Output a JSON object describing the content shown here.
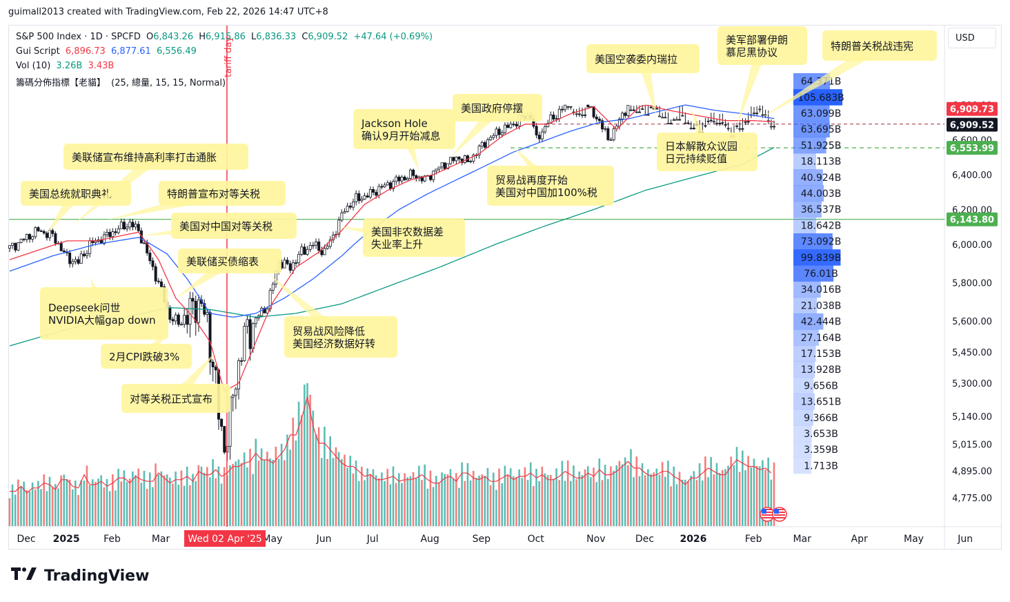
{
  "credit": "guimall2013 created with TradingView.com, Feb 22, 2026 14:47 UTC+8",
  "currency": "USD",
  "brand": "TradingView",
  "legend": {
    "symbol": "S&P 500 Index · 1D · SPCFD",
    "o_label": "O",
    "o": "6,843.26",
    "h_label": "H",
    "h": "6,915.86",
    "l_label": "L",
    "l": "6,836.33",
    "c_label": "C",
    "c": "6,909.52",
    "change": "+47.64 (+0.69%)",
    "script_label": "Gui Script",
    "script_v1": "6,896.73",
    "script_v2": "6,877.61",
    "script_v3": "6,556.49",
    "vol_label": "Vol (10)",
    "vol_v1": "3.26B",
    "vol_v2": "3.43B",
    "profile_label": "籌碼分佈指標【老貓】",
    "profile_params": "(25, 總量, 15, 15, Normal)"
  },
  "colors": {
    "up": "#26a69a",
    "down": "#ef5350",
    "ma_red": "#f23645",
    "ma_blue": "#2962ff",
    "ma_green": "#089981",
    "level_green": "#4caf50",
    "callout": "#fff59d",
    "profile": "#2962ff",
    "event": "#f23645"
  },
  "chart_data": {
    "type": "candlestick",
    "ylim": [
      4700,
      7000
    ],
    "yticks": [
      "6,800.00",
      "6,600.00",
      "6,400.00",
      "6,200.00",
      "6,000.00",
      "5,800.00",
      "5,600.00",
      "5,450.00",
      "5,300.00",
      "5,140.00",
      "5,015.00",
      "4,895.00",
      "4,775.00"
    ],
    "ytick_values": [
      6800,
      6600,
      6400,
      6200,
      6000,
      5800,
      5600,
      5450,
      5300,
      5140,
      5015,
      4895,
      4775
    ],
    "xticks": [
      {
        "label": "Dec",
        "bold": false
      },
      {
        "label": "2025",
        "bold": true
      },
      {
        "label": "Feb",
        "bold": false
      },
      {
        "label": "Mar",
        "bold": false
      },
      {
        "label": "May",
        "bold": false
      },
      {
        "label": "Jun",
        "bold": false
      },
      {
        "label": "Jul",
        "bold": false
      },
      {
        "label": "Aug",
        "bold": false
      },
      {
        "label": "Sep",
        "bold": false
      },
      {
        "label": "Oct",
        "bold": false
      },
      {
        "label": "Nov",
        "bold": false
      },
      {
        "label": "Dec",
        "bold": false
      },
      {
        "label": "2026",
        "bold": true
      },
      {
        "label": "Feb",
        "bold": false
      },
      {
        "label": "Mar",
        "bold": false
      },
      {
        "label": "Apr",
        "bold": false
      },
      {
        "label": "May",
        "bold": false
      },
      {
        "label": "Jun",
        "bold": false
      }
    ],
    "xtick_positions": [
      0,
      14,
      30,
      47,
      86,
      104,
      121,
      141,
      159,
      178,
      199,
      216,
      233,
      254,
      271,
      291,
      310,
      328
    ],
    "close_path": [
      [
        0,
        5980
      ],
      [
        5,
        6030
      ],
      [
        10,
        6080
      ],
      [
        15,
        6050
      ],
      [
        20,
        5930
      ],
      [
        24,
        5905
      ],
      [
        28,
        6000
      ],
      [
        33,
        6040
      ],
      [
        38,
        6090
      ],
      [
        42,
        6120
      ],
      [
        45,
        6080
      ],
      [
        48,
        5950
      ],
      [
        52,
        5800
      ],
      [
        56,
        5620
      ],
      [
        59,
        5590
      ],
      [
        62,
        5620
      ],
      [
        65,
        5700
      ],
      [
        67,
        5670
      ],
      [
        69,
        5590
      ],
      [
        71,
        5400
      ],
      [
        73,
        5150
      ],
      [
        75,
        5010
      ],
      [
        77,
        5130
      ],
      [
        79,
        5330
      ],
      [
        82,
        5520
      ],
      [
        86,
        5610
      ],
      [
        90,
        5680
      ],
      [
        94,
        5910
      ],
      [
        98,
        5880
      ],
      [
        102,
        5960
      ],
      [
        106,
        6000
      ],
      [
        110,
        5960
      ],
      [
        113,
        6050
      ],
      [
        117,
        6200
      ],
      [
        121,
        6260
      ],
      [
        125,
        6280
      ],
      [
        129,
        6320
      ],
      [
        133,
        6350
      ],
      [
        137,
        6380
      ],
      [
        141,
        6400
      ],
      [
        145,
        6370
      ],
      [
        149,
        6430
      ],
      [
        153,
        6470
      ],
      [
        157,
        6500
      ],
      [
        160,
        6470
      ],
      [
        163,
        6530
      ],
      [
        167,
        6600
      ],
      [
        171,
        6650
      ],
      [
        175,
        6680
      ],
      [
        178,
        6720
      ],
      [
        182,
        6740
      ],
      [
        184,
        6600
      ],
      [
        188,
        6700
      ],
      [
        192,
        6760
      ],
      [
        196,
        6820
      ],
      [
        200,
        6850
      ],
      [
        203,
        6760
      ],
      [
        206,
        6710
      ],
      [
        209,
        6600
      ],
      [
        212,
        6680
      ],
      [
        216,
        6800
      ],
      [
        220,
        6840
      ],
      [
        224,
        6810
      ],
      [
        227,
        6840
      ],
      [
        230,
        6900
      ],
      [
        234,
        6850
      ],
      [
        238,
        6920
      ],
      [
        241,
        6930
      ],
      [
        245,
        6870
      ],
      [
        249,
        6900
      ],
      [
        252,
        6950
      ],
      [
        255,
        6920
      ],
      [
        258,
        6860
      ],
      [
        261,
        6810
      ],
      [
        264,
        6870
      ],
      [
        267,
        6909
      ]
    ],
    "ma_red_path": [
      [
        0,
        5920
      ],
      [
        20,
        6020
      ],
      [
        30,
        6020
      ],
      [
        45,
        6070
      ],
      [
        52,
        5920
      ],
      [
        58,
        5720
      ],
      [
        64,
        5620
      ],
      [
        70,
        5500
      ],
      [
        75,
        5260
      ],
      [
        80,
        5300
      ],
      [
        86,
        5500
      ],
      [
        92,
        5700
      ],
      [
        100,
        5880
      ],
      [
        108,
        5960
      ],
      [
        116,
        6080
      ],
      [
        124,
        6230
      ],
      [
        132,
        6310
      ],
      [
        140,
        6370
      ],
      [
        148,
        6400
      ],
      [
        156,
        6460
      ],
      [
        164,
        6520
      ],
      [
        172,
        6620
      ],
      [
        180,
        6690
      ],
      [
        188,
        6690
      ],
      [
        196,
        6750
      ],
      [
        204,
        6790
      ],
      [
        212,
        6660
      ],
      [
        220,
        6790
      ],
      [
        230,
        6830
      ],
      [
        240,
        6860
      ],
      [
        250,
        6890
      ],
      [
        260,
        6890
      ],
      [
        267,
        6897
      ]
    ],
    "ma_blue_path": [
      [
        0,
        5860
      ],
      [
        15,
        5940
      ],
      [
        30,
        6000
      ],
      [
        45,
        6040
      ],
      [
        55,
        5950
      ],
      [
        62,
        5820
      ],
      [
        70,
        5640
      ],
      [
        78,
        5620
      ],
      [
        86,
        5640
      ],
      [
        96,
        5720
      ],
      [
        106,
        5820
      ],
      [
        116,
        5940
      ],
      [
        126,
        6080
      ],
      [
        136,
        6200
      ],
      [
        146,
        6290
      ],
      [
        156,
        6370
      ],
      [
        166,
        6450
      ],
      [
        176,
        6530
      ],
      [
        186,
        6590
      ],
      [
        196,
        6650
      ],
      [
        206,
        6700
      ],
      [
        216,
        6720
      ],
      [
        226,
        6760
      ],
      [
        236,
        6800
      ],
      [
        246,
        6830
      ],
      [
        256,
        6850
      ],
      [
        267,
        6878
      ]
    ],
    "ma_green_path": [
      [
        0,
        5480
      ],
      [
        20,
        5560
      ],
      [
        40,
        5620
      ],
      [
        56,
        5670
      ],
      [
        70,
        5660
      ],
      [
        86,
        5620
      ],
      [
        100,
        5640
      ],
      [
        116,
        5690
      ],
      [
        132,
        5780
      ],
      [
        150,
        5880
      ],
      [
        168,
        5990
      ],
      [
        186,
        6100
      ],
      [
        204,
        6200
      ],
      [
        222,
        6310
      ],
      [
        240,
        6390
      ],
      [
        256,
        6460
      ],
      [
        267,
        6556
      ]
    ],
    "volume_series": [
      2.1,
      2.4,
      2.0,
      2.3,
      2.6,
      2.5,
      2.2,
      2.8,
      2.4,
      2.3,
      3.1,
      2.5,
      2.7,
      2.4,
      2.6,
      2.9,
      2.6,
      3.0,
      2.8,
      2.7,
      3.2,
      2.9,
      2.6,
      2.8,
      3.0,
      2.7,
      3.3,
      3.1,
      3.4,
      3.0,
      3.2,
      3.6,
      3.8,
      3.9,
      4.4,
      4.0,
      3.8,
      4.2,
      4.6,
      5.5,
      6.5,
      7.8,
      6.0,
      5.0,
      4.6,
      4.2,
      3.8,
      3.6,
      3.3,
      3.0,
      3.1,
      2.8,
      2.9,
      3.0,
      2.7,
      2.8,
      2.9,
      3.1,
      2.8,
      2.6,
      2.9,
      3.0,
      2.7,
      3.2,
      2.9,
      2.8,
      3.0,
      2.7,
      2.9,
      3.1,
      2.8,
      3.0,
      3.2,
      2.9,
      3.1,
      2.8,
      3.0,
      3.3,
      3.1,
      2.9,
      3.2,
      3.0,
      3.4,
      3.1,
      3.3,
      3.6,
      3.9,
      3.5,
      3.2,
      3.0,
      3.1,
      3.3,
      3.0,
      2.8,
      2.5,
      2.9,
      3.2,
      3.5,
      3.3,
      3.1,
      3.6,
      4.0,
      3.8,
      3.6,
      3.4,
      3.5,
      3.2
    ],
    "volume_profile_labels": [
      "64.371B",
      "105.683B",
      "63.099B",
      "63.695B",
      "51.925B",
      "18.113B",
      "40.924B",
      "44.003B",
      "36.537B",
      "18.642B",
      "73.092B",
      "99.839B",
      "76.01B",
      "34.016B",
      "21.038B",
      "42.444B",
      "27.164B",
      "17.153B",
      "13.928B",
      "9.656B",
      "13.651B",
      "9.366B",
      "3.653B",
      "3.359B",
      "1.713B"
    ],
    "volume_profile_values": [
      64.371,
      105.683,
      63.099,
      63.695,
      51.925,
      18.113,
      40.924,
      44.003,
      36.537,
      18.642,
      73.092,
      99.839,
      76.01,
      34.016,
      21.038,
      42.444,
      27.164,
      17.153,
      13.928,
      9.656,
      13.651,
      9.366,
      3.653,
      3.359,
      1.713
    ],
    "price_labels": [
      {
        "text": "6,909.73",
        "value": 6909.73,
        "color": "#f23645"
      },
      {
        "text": "6,909.52",
        "value": 6909.52,
        "color": "#131722"
      },
      {
        "text": "6,553.99",
        "value": 6553.99,
        "color": "#4caf50"
      },
      {
        "text": "6,143.80",
        "value": 6143.8,
        "color": "#4caf50"
      }
    ],
    "levels": {
      "support_solid": 6143.8,
      "support_dashed": 6553.99,
      "resistance_dashed": 6909.73
    },
    "event_marker": {
      "label": "tariff day",
      "date_label": "Wed 02 Apr '25",
      "x": 73
    }
  },
  "annotations": [
    {
      "lines": [
        "美国总统就职典礼"
      ],
      "target": [
        13,
        6060
      ]
    },
    {
      "lines": [
        "美联储宣布维持高利率打击通胀"
      ],
      "target": [
        22,
        6110
      ]
    },
    {
      "lines": [
        "特朗普宣布对等关税"
      ],
      "target": [
        34,
        6140
      ]
    },
    {
      "lines": [
        "美国对中国对等关税"
      ],
      "target": [
        46,
        6050
      ]
    },
    {
      "lines": [
        "美联储买债缩表"
      ],
      "target": [
        58,
        5720
      ]
    },
    {
      "lines": [
        "Deepseek问世",
        "NVIDIA大幅gap down"
      ],
      "target": [
        28,
        5830
      ]
    },
    {
      "lines": [
        "2月CPI跌破3%"
      ],
      "target": [
        55,
        5550
      ]
    },
    {
      "lines": [
        "对等关税正式宣布"
      ],
      "target": [
        72,
        5450
      ]
    },
    {
      "lines": [
        "贸易战风险降低",
        "美国经济数据好转"
      ],
      "target": [
        90,
        5850
      ]
    },
    {
      "lines": [
        "美国非农数据差",
        "失业率上升"
      ],
      "target": [
        115,
        6100
      ]
    },
    {
      "lines": [
        "Jackson Hole",
        "确认9月开始减息"
      ],
      "target": [
        143,
        6420
      ]
    },
    {
      "lines": [
        "美国政府停摆"
      ],
      "target": [
        154,
        6500
      ]
    },
    {
      "lines": [
        "贸易战再度开始",
        "美国对中国加100%税"
      ],
      "target": [
        176,
        6560
      ]
    },
    {
      "lines": [
        "美国空袭委内瑞拉"
      ],
      "target": [
        226,
        6870
      ]
    },
    {
      "lines": [
        "美军部署伊朗",
        "慕尼黑协议"
      ],
      "target": [
        254,
        6920
      ]
    },
    {
      "lines": [
        "特朗普关税战违宪"
      ],
      "target": [
        262,
        6880
      ]
    },
    {
      "lines": [
        "日本解散众议园",
        "日元持续贬值"
      ],
      "target": [
        238,
        6780
      ]
    }
  ]
}
